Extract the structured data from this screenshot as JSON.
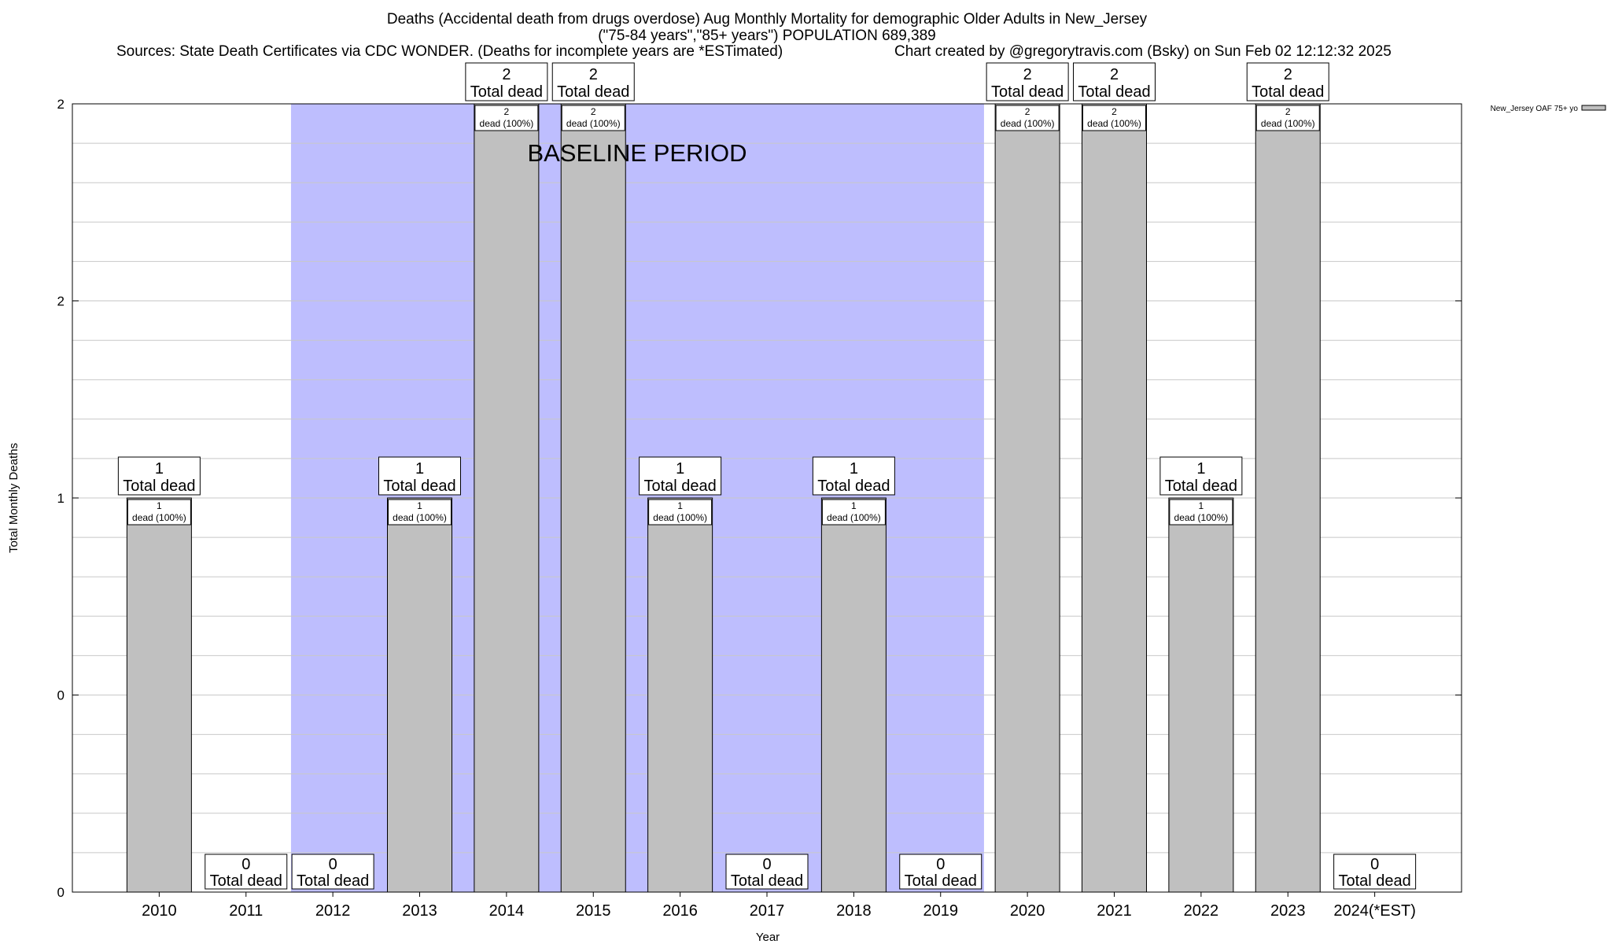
{
  "title": {
    "line1": "Deaths (Accidental death from drugs overdose) Aug Monthly Mortality for demographic Older Adults in New_Jersey",
    "line2": "(\"75-84 years\",\"85+ years\") POPULATION 689,389",
    "sources": "Sources: State Death Certificates via CDC WONDER. (Deaths for incomplete years are *ESTimated)",
    "credit": "Chart created by @gregorytravis.com (Bsky) on Sun Feb 02 12:12:32 2025"
  },
  "colors": {
    "bar": "#c0c0c0",
    "baseline": "#bebefe",
    "grid": "#c8c8c8"
  },
  "chart_data": {
    "type": "bar",
    "title": "Deaths (Accidental death from drugs overdose) Aug Monthly Mortality for demographic Older Adults in New_Jersey",
    "xlabel": "Year",
    "ylabel": "Total Monthly Deaths",
    "categories": [
      "2010",
      "2011",
      "2012",
      "2013",
      "2014",
      "2015",
      "2016",
      "2017",
      "2018",
      "2019",
      "2020",
      "2021",
      "2022",
      "2023",
      "2024(*EST)"
    ],
    "series": [
      {
        "name": "New_Jersey OAF 75+ yo",
        "values": [
          1,
          0,
          0,
          1,
          2,
          2,
          1,
          0,
          1,
          0,
          2,
          2,
          1,
          2,
          0
        ]
      }
    ],
    "ylim": [
      0,
      2
    ],
    "ytick_labels": [
      "0",
      "0",
      "1",
      "2",
      "2"
    ],
    "ytick_values": [
      0,
      0.5,
      1,
      1.5,
      2
    ],
    "grid": true,
    "legend": "top-right",
    "total_label": "Total dead",
    "inner_label": "dead (100%)",
    "baseline_band": {
      "label": "BASELINE PERIOD",
      "from": "2012",
      "to": "2019"
    }
  }
}
